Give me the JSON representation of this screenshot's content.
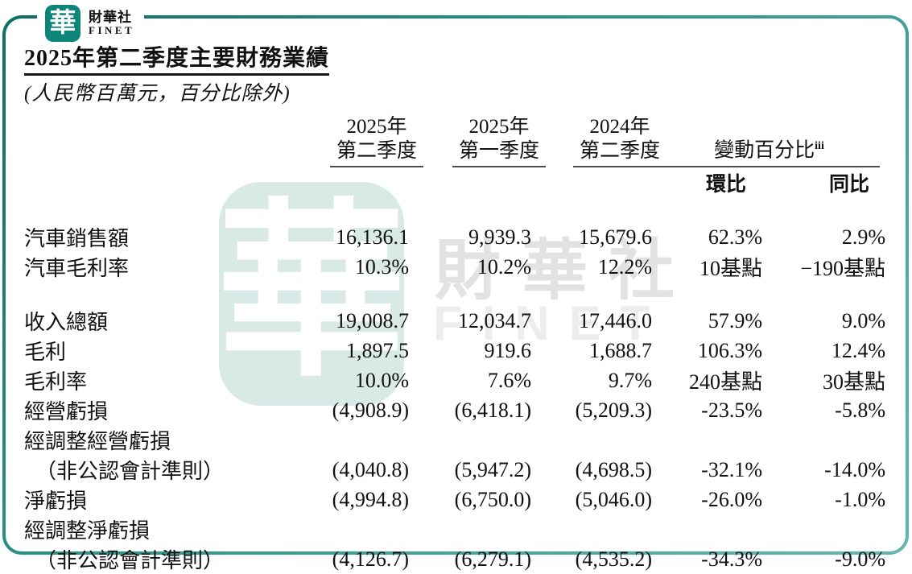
{
  "brand": {
    "logo_char": "華",
    "name_zh": "財華社",
    "name_en": "FINET"
  },
  "header": {
    "title": "2025年第二季度主要財務業績",
    "subtitle": "(人民幣百萬元，百分比除外)"
  },
  "table": {
    "period_columns": [
      {
        "line1": "2025年",
        "line2": "第二季度"
      },
      {
        "line1": "2025年",
        "line2": "第一季度"
      },
      {
        "line1": "2024年",
        "line2": "第二季度"
      }
    ],
    "change_group": {
      "label": "變動百分比",
      "footnote": "iii",
      "sub_columns": [
        "環比",
        "同比"
      ]
    },
    "sections": [
      {
        "rows": [
          {
            "label": "汽車銷售額",
            "values": [
              "16,136.1",
              "9,939.3",
              "15,679.6",
              "62.3%",
              "2.9%"
            ]
          },
          {
            "label": "汽車毛利率",
            "values": [
              "10.3%",
              "10.2%",
              "12.2%",
              "10基點",
              "−190基點"
            ]
          }
        ]
      },
      {
        "rows": [
          {
            "label": "收入總額",
            "values": [
              "19,008.7",
              "12,034.7",
              "17,446.0",
              "57.9%",
              "9.0%"
            ]
          },
          {
            "label": "毛利",
            "values": [
              "1,897.5",
              "919.6",
              "1,688.7",
              "106.3%",
              "12.4%"
            ]
          },
          {
            "label": "毛利率",
            "values": [
              "10.0%",
              "7.6%",
              "9.7%",
              "240基點",
              "30基點"
            ]
          },
          {
            "label": "經營虧損",
            "values": [
              "(4,908.9)",
              "(6,418.1)",
              "(5,209.3)",
              "-23.5%",
              "-5.8%"
            ]
          },
          {
            "label": "經調整經營虧損",
            "values": [
              "",
              "",
              "",
              "",
              ""
            ]
          },
          {
            "label": "（非公認會計準則）",
            "indent": true,
            "values": [
              "(4,040.8)",
              "(5,947.2)",
              "(4,698.5)",
              "-32.1%",
              "-14.0%"
            ]
          },
          {
            "label": "淨虧損",
            "values": [
              "(4,994.8)",
              "(6,750.0)",
              "(5,046.0)",
              "-26.0%",
              "-1.0%"
            ]
          },
          {
            "label": "經調整淨虧損",
            "values": [
              "",
              "",
              "",
              "",
              ""
            ]
          },
          {
            "label": "（非公認會計準則）",
            "indent": true,
            "values": [
              "(4,126.7)",
              "(6,279.1)",
              "(4,535.2)",
              "-34.3%",
              "-9.0%"
            ]
          }
        ]
      }
    ]
  },
  "watermark": {
    "logo_char": "華",
    "text_zh": "財華社",
    "text_en": "FINET"
  },
  "colors": {
    "brand_teal": "#0e8579",
    "frame_gradient_start": "#0d6e64",
    "frame_gradient_end": "#65b7ae",
    "watermark_teal": "#d9eae6",
    "watermark_gray": "#e2e2e2",
    "text_black": "#111111"
  }
}
